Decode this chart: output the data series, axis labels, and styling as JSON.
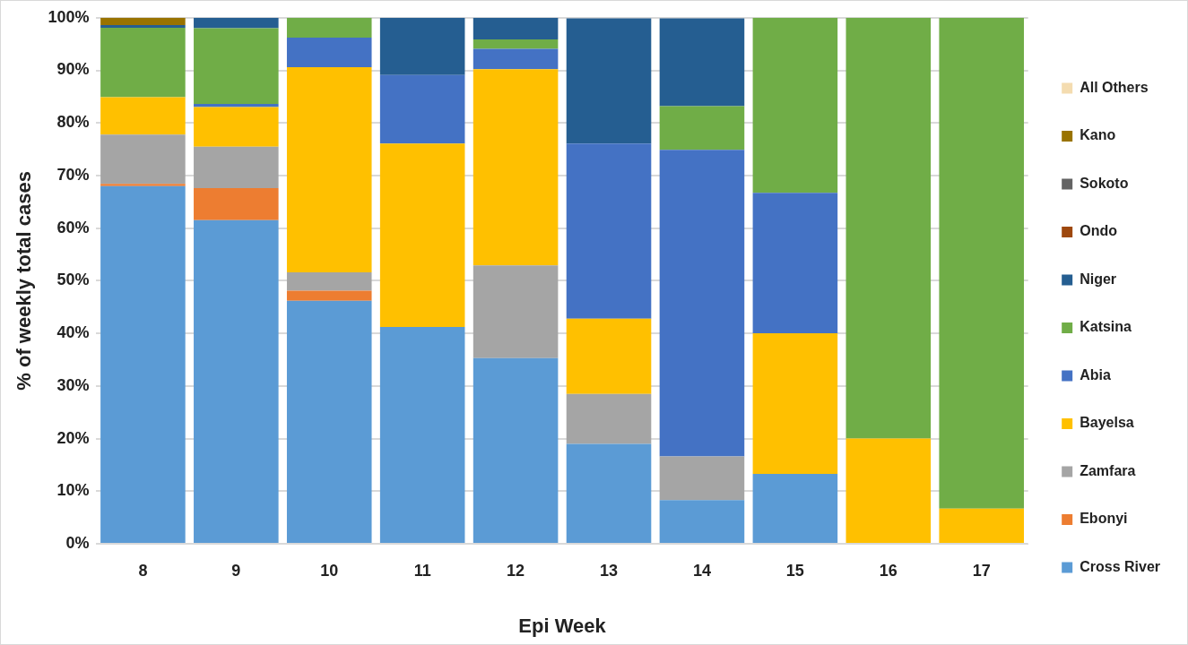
{
  "chart_data": {
    "type": "bar",
    "stacked": true,
    "xlabel": "Epi Week",
    "ylabel": "% of weekly total cases",
    "categories": [
      "8",
      "9",
      "10",
      "11",
      "12",
      "13",
      "14",
      "15",
      "16",
      "17"
    ],
    "series": [
      {
        "name": "Cross River",
        "color": "#5b9bd5",
        "values": [
          68,
          61.5,
          46.2,
          41.2,
          35.3,
          19,
          8.3,
          13.3,
          0,
          0
        ]
      },
      {
        "name": "Ebonyi",
        "color": "#ed7d31",
        "values": [
          0.4,
          6.1,
          1.9,
          0,
          0,
          0,
          0,
          0,
          0,
          0
        ]
      },
      {
        "name": "Zamfara",
        "color": "#a5a5a5",
        "values": [
          9.4,
          7.9,
          3.5,
          0,
          17.6,
          9.5,
          8.3,
          0,
          0,
          0
        ]
      },
      {
        "name": "Bayelsa",
        "color": "#ffc000",
        "values": [
          7.1,
          7.5,
          39,
          34.9,
          37.3,
          14.3,
          0,
          26.7,
          20,
          6.7
        ]
      },
      {
        "name": "Abia",
        "color": "#4472c4",
        "values": [
          0,
          0.6,
          5.6,
          13,
          3.9,
          33.3,
          58.3,
          26.7,
          0,
          0
        ]
      },
      {
        "name": "Katsina",
        "color": "#70ad47",
        "values": [
          13.2,
          14.4,
          3.8,
          0,
          1.8,
          0,
          8.3,
          33.3,
          80,
          93.3
        ]
      },
      {
        "name": "Niger",
        "color": "#255e91",
        "values": [
          0.5,
          2,
          0,
          10.9,
          4.1,
          23.8,
          16.7,
          0,
          0,
          0
        ]
      },
      {
        "name": "Ondo",
        "color": "#9e480e",
        "values": [
          0,
          0,
          0,
          0,
          0,
          0,
          0,
          0,
          0,
          0
        ]
      },
      {
        "name": "Sokoto",
        "color": "#636363",
        "values": [
          0,
          0,
          0,
          0,
          0,
          0,
          0,
          0,
          0,
          0
        ]
      },
      {
        "name": "Kano",
        "color": "#997300",
        "values": [
          1.4,
          0,
          0,
          0,
          0,
          0,
          0,
          0,
          0,
          0
        ]
      },
      {
        "name": "All Others",
        "color": "#f4dcb0",
        "values": [
          0,
          0,
          0,
          0,
          0,
          0,
          0,
          0,
          0,
          0
        ]
      }
    ],
    "ylim": [
      0,
      100
    ],
    "yticks": [
      {
        "value": 0,
        "label": "0%"
      },
      {
        "value": 10,
        "label": "10%"
      },
      {
        "value": 20,
        "label": "20%"
      },
      {
        "value": 30,
        "label": "30%"
      },
      {
        "value": 40,
        "label": "40%"
      },
      {
        "value": 50,
        "label": "50%"
      },
      {
        "value": 60,
        "label": "60%"
      },
      {
        "value": 70,
        "label": "70%"
      },
      {
        "value": 80,
        "label": "80%"
      },
      {
        "value": 90,
        "label": "90%"
      },
      {
        "value": 100,
        "label": "100%"
      }
    ],
    "grid": "y",
    "legend": "right"
  }
}
